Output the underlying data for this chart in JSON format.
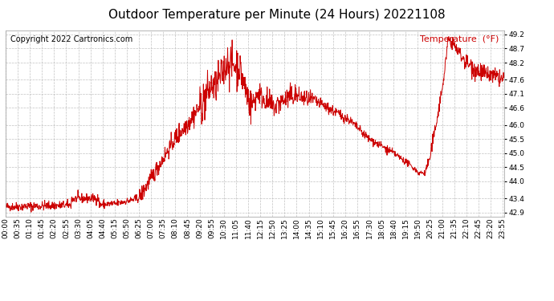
{
  "title": "Outdoor Temperature per Minute (24 Hours) 20221108",
  "copyright": "Copyright 2022 Cartronics.com",
  "legend_label": "Temperature  (°F)",
  "line_color": "#cc0000",
  "background_color": "#ffffff",
  "grid_color": "#bbbbbb",
  "yticks": [
    42.9,
    43.4,
    44.0,
    44.5,
    45.0,
    45.5,
    46.0,
    46.6,
    47.1,
    47.6,
    48.2,
    48.7,
    49.2
  ],
  "ylim": [
    42.75,
    49.35
  ],
  "total_minutes": 1440,
  "xtick_labels": [
    "00:00",
    "00:35",
    "01:10",
    "01:45",
    "02:20",
    "02:55",
    "03:30",
    "04:05",
    "04:40",
    "05:15",
    "05:50",
    "06:25",
    "07:00",
    "07:35",
    "08:10",
    "08:45",
    "09:20",
    "09:55",
    "10:30",
    "11:05",
    "11:40",
    "12:15",
    "12:50",
    "13:25",
    "14:00",
    "14:35",
    "15:10",
    "15:45",
    "16:20",
    "16:55",
    "17:30",
    "18:05",
    "18:40",
    "19:15",
    "19:50",
    "20:25",
    "21:00",
    "21:35",
    "22:10",
    "22:45",
    "23:20",
    "23:55"
  ],
  "title_fontsize": 11,
  "axis_fontsize": 6.5,
  "copyright_fontsize": 7,
  "legend_fontsize": 8
}
